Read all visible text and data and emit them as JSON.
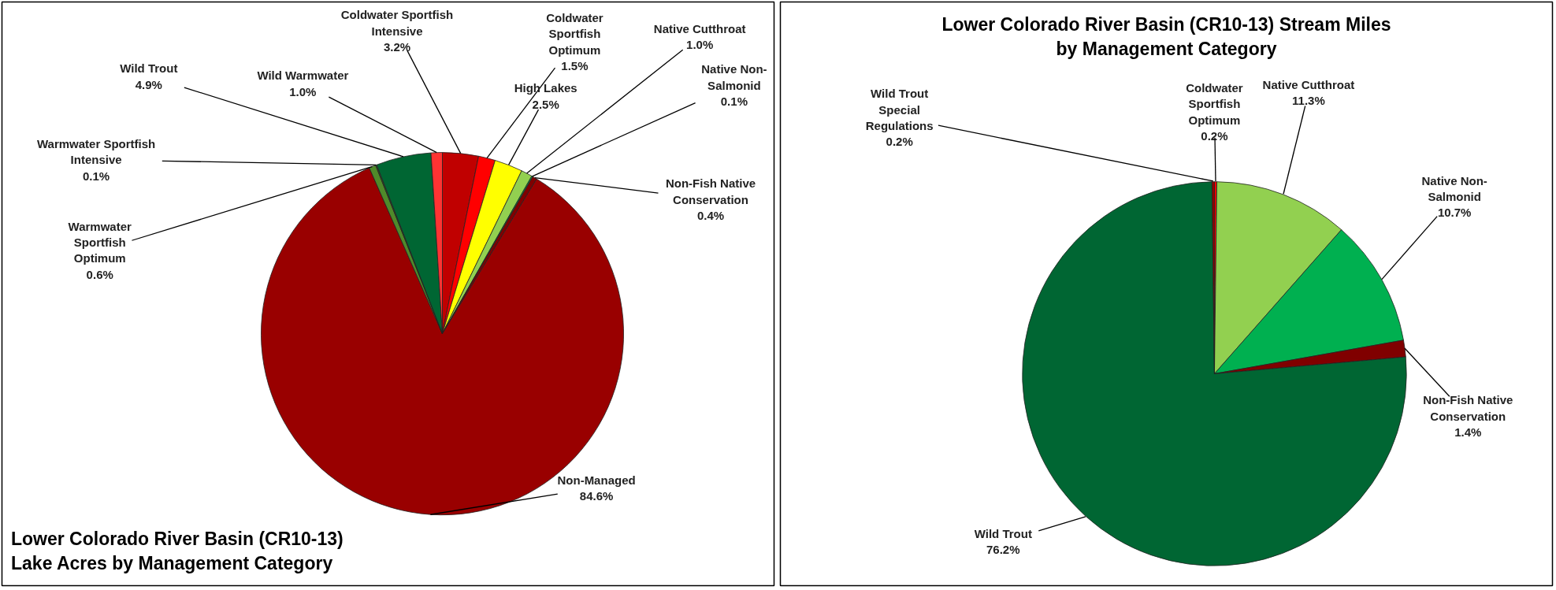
{
  "chart_data": [
    {
      "type": "pie",
      "title": "Lower Colorado River Basin (CR10-13)\nLake Acres by Management Category",
      "categories": [
        "Coldwater Sportfish Intensive",
        "Coldwater Sportfish Optimum",
        "High Lakes",
        "Native Cutthroat",
        "Native Non-Salmonid",
        "Non-Fish Native Conservation",
        "Non-Managed",
        "Warmwater Sportfish Optimum",
        "Warmwater Sportfish Intensive",
        "Wild Trout",
        "Wild Warmwater"
      ],
      "values": [
        3.2,
        1.5,
        2.5,
        1.0,
        0.1,
        0.4,
        84.6,
        0.6,
        0.1,
        4.9,
        1.0
      ],
      "colors": [
        "#c00000",
        "#ff0000",
        "#ffff00",
        "#92d050",
        "#00b050",
        "#800000",
        "#990000",
        "#4f8a2a",
        "#375623",
        "#006633",
        "#ff3333"
      ],
      "value_labels": [
        "3.2%",
        "1.5%",
        "2.5%",
        "1.0%",
        "0.1%",
        "0.4%",
        "84.6%",
        "0.6%",
        "0.1%",
        "4.9%",
        "1.0%"
      ],
      "legend": false
    },
    {
      "type": "pie",
      "title": "Lower Colorado River Basin (CR10-13) Stream Miles\nby Management Category",
      "categories": [
        "Coldwater Sportfish Optimum",
        "Native Cutthroat",
        "Native Non-Salmonid",
        "Non-Fish Native Conservation",
        "Wild Trout",
        "Wild Trout Special Regulations"
      ],
      "values": [
        0.2,
        11.3,
        10.7,
        1.4,
        76.2,
        0.2
      ],
      "colors": [
        "#ff0000",
        "#92d050",
        "#00b050",
        "#800000",
        "#006633",
        "#990000"
      ],
      "value_labels": [
        "0.2%",
        "11.3%",
        "10.7%",
        "1.4%",
        "76.2%",
        "0.2%"
      ],
      "legend": false
    }
  ]
}
